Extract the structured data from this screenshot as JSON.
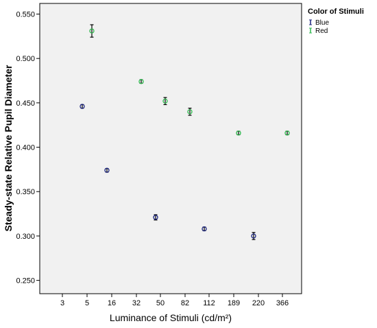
{
  "chart_data": {
    "type": "scatter",
    "xlabel": "Luminance of Stimuli (cd/m²)",
    "ylabel": "Steady-state Relative Pupil Diameter",
    "x_tick_labels": [
      "3",
      "5",
      "16",
      "32",
      "50",
      "82",
      "112",
      "189",
      "220",
      "366"
    ],
    "y_tick_labels": [
      "0.250",
      "0.300",
      "0.350",
      "0.400",
      "0.450",
      "0.500",
      "0.550"
    ],
    "ylim": [
      0.235,
      0.562
    ],
    "grid": false,
    "legend": {
      "title": "Color of Stimuli",
      "placement": "right"
    },
    "series": [
      {
        "name": "Blue",
        "color": "#1a237e",
        "points": [
          {
            "x": "5",
            "y": 0.446,
            "err": 0.002
          },
          {
            "x": "16",
            "y": 0.374,
            "err": 0.002
          },
          {
            "x": "50",
            "y": 0.321,
            "err": 0.003
          },
          {
            "x": "112",
            "y": 0.308,
            "err": 0.002
          },
          {
            "x": "220",
            "y": 0.3,
            "err": 0.004
          }
        ]
      },
      {
        "name": "Red",
        "color": "#2db84d",
        "points": [
          {
            "x": "5",
            "y": 0.531,
            "err": 0.007
          },
          {
            "x": "32",
            "y": 0.474,
            "err": 0.002
          },
          {
            "x": "50",
            "y": 0.452,
            "err": 0.004
          },
          {
            "x": "82",
            "y": 0.44,
            "err": 0.004
          },
          {
            "x": "189",
            "y": 0.416,
            "err": 0.002
          },
          {
            "x": "366",
            "y": 0.416,
            "err": 0.002
          }
        ]
      }
    ]
  }
}
